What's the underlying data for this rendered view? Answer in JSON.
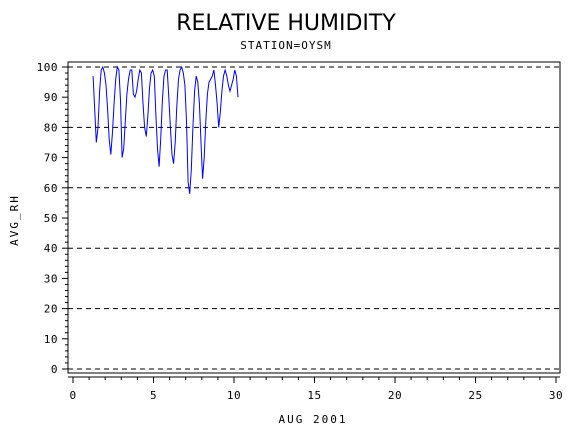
{
  "chart_data": {
    "type": "line",
    "title": "RELATIVE HUMIDITY",
    "subtitle": "STATION=OYSM",
    "xlabel": "AUG 2001",
    "ylabel": "AVG_RH",
    "xlim": [
      0,
      30
    ],
    "ylim": [
      0,
      100
    ],
    "xticks": [
      0,
      5,
      10,
      15,
      20,
      25,
      30
    ],
    "yticks": [
      0,
      10,
      20,
      30,
      40,
      50,
      60,
      70,
      80,
      90,
      100
    ],
    "grid": {
      "y_dashed_at": [
        0,
        20,
        40,
        60,
        80,
        100
      ]
    },
    "series_color": "#0000ff",
    "x": [
      1.25,
      1.35,
      1.45,
      1.55,
      1.65,
      1.75,
      1.85,
      1.95,
      2.05,
      2.15,
      2.25,
      2.35,
      2.45,
      2.55,
      2.65,
      2.75,
      2.85,
      2.95,
      3.05,
      3.15,
      3.25,
      3.35,
      3.45,
      3.55,
      3.65,
      3.75,
      3.85,
      3.95,
      4.05,
      4.15,
      4.25,
      4.35,
      4.45,
      4.55,
      4.65,
      4.75,
      4.85,
      4.95,
      5.05,
      5.15,
      5.25,
      5.35,
      5.45,
      5.55,
      5.65,
      5.75,
      5.85,
      5.95,
      6.05,
      6.15,
      6.25,
      6.35,
      6.45,
      6.55,
      6.65,
      6.75,
      6.85,
      6.95,
      7.05,
      7.15,
      7.25,
      7.35,
      7.45,
      7.55,
      7.65,
      7.75,
      7.85,
      7.95,
      8.05,
      8.15,
      8.25,
      8.35,
      8.45,
      8.55,
      8.65,
      8.75,
      8.85,
      8.95,
      9.05,
      9.15,
      9.25,
      9.35,
      9.45,
      9.55,
      9.65,
      9.75,
      9.85,
      9.95,
      10.05,
      10.15,
      10.25
    ],
    "y": [
      97,
      86,
      75,
      80,
      92,
      99,
      100,
      98,
      94,
      86,
      76,
      71,
      78,
      88,
      96,
      100,
      99,
      89,
      70,
      73,
      82,
      91,
      96,
      99,
      99,
      91,
      90,
      92,
      96,
      99,
      98,
      88,
      80,
      77,
      84,
      93,
      98,
      99,
      97,
      84,
      73,
      67,
      76,
      89,
      97,
      99,
      99,
      90,
      80,
      71,
      68,
      75,
      87,
      96,
      99,
      100,
      98,
      94,
      82,
      62,
      58,
      66,
      80,
      92,
      97,
      95,
      88,
      75,
      63,
      70,
      82,
      91,
      95,
      96,
      97,
      99,
      94,
      88,
      80,
      85,
      92,
      97,
      99,
      97,
      94,
      92,
      94,
      96,
      99,
      97,
      90
    ]
  }
}
